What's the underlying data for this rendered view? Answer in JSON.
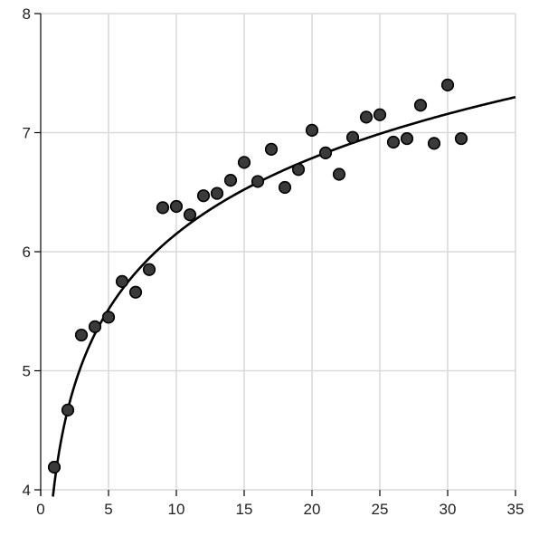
{
  "chart_data": {
    "type": "scatter",
    "title": "",
    "xlabel": "",
    "ylabel": "",
    "xlim": [
      0,
      35
    ],
    "ylim": [
      4,
      8
    ],
    "x_ticks": [
      0,
      5,
      10,
      15,
      20,
      25,
      30,
      35
    ],
    "y_ticks": [
      4,
      5,
      6,
      7,
      8
    ],
    "grid": true,
    "legend": "none",
    "colors": {
      "points": "#3a3a3a",
      "point_outline": "#000000",
      "curve": "#000000",
      "grid": "#d9d9d9"
    },
    "series": [
      {
        "kind": "scatter",
        "points": [
          {
            "x": 1,
            "y": 4.19
          },
          {
            "x": 2,
            "y": 4.67
          },
          {
            "x": 3,
            "y": 5.3
          },
          {
            "x": 4,
            "y": 5.37
          },
          {
            "x": 5,
            "y": 5.45
          },
          {
            "x": 6,
            "y": 5.75
          },
          {
            "x": 7,
            "y": 5.66
          },
          {
            "x": 8,
            "y": 5.85
          },
          {
            "x": 9,
            "y": 6.37
          },
          {
            "x": 10,
            "y": 6.38
          },
          {
            "x": 11,
            "y": 6.31
          },
          {
            "x": 12,
            "y": 6.47
          },
          {
            "x": 13,
            "y": 6.49
          },
          {
            "x": 14,
            "y": 6.6
          },
          {
            "x": 15,
            "y": 6.75
          },
          {
            "x": 16,
            "y": 6.59
          },
          {
            "x": 17,
            "y": 6.86
          },
          {
            "x": 18,
            "y": 6.54
          },
          {
            "x": 19,
            "y": 6.69
          },
          {
            "x": 20,
            "y": 7.02
          },
          {
            "x": 21,
            "y": 6.83
          },
          {
            "x": 22,
            "y": 6.65
          },
          {
            "x": 23,
            "y": 6.96
          },
          {
            "x": 24,
            "y": 7.13
          },
          {
            "x": 25,
            "y": 7.15
          },
          {
            "x": 26,
            "y": 6.92
          },
          {
            "x": 27,
            "y": 6.95
          },
          {
            "x": 28,
            "y": 7.23
          },
          {
            "x": 29,
            "y": 6.91
          },
          {
            "x": 30,
            "y": 7.4
          },
          {
            "x": 31,
            "y": 6.95
          }
        ]
      },
      {
        "kind": "fit-curve",
        "model": "logarithmic",
        "equation": "y = 4.04 + 0.9165 * ln(x)",
        "a": 4.04,
        "b": 0.9165,
        "x_range": [
          0.9,
          35
        ]
      }
    ]
  }
}
